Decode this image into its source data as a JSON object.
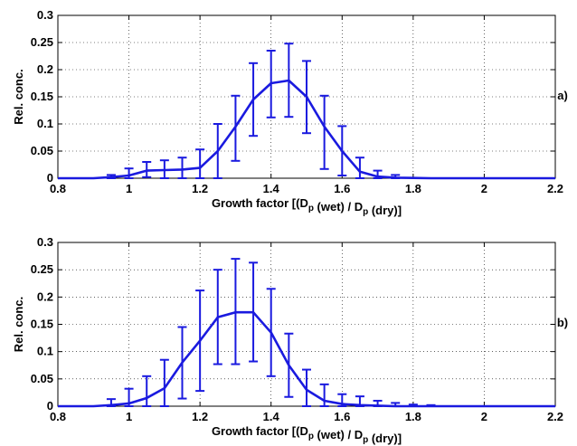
{
  "chart_data": [
    {
      "type": "line",
      "panel_label": "a)",
      "xlabel": "Growth factor [(D_p (wet) / D_p (dry)]",
      "ylabel": "Rel. conc.",
      "xlim": [
        0.8,
        2.2
      ],
      "ylim": [
        0,
        0.3
      ],
      "xticks": [
        "0.8",
        "1",
        "1.2",
        "1.4",
        "1.6",
        "1.8",
        "2",
        "2.2"
      ],
      "yticks": [
        "0",
        "0.05",
        "0.1",
        "0.15",
        "0.2",
        "0.25",
        "0.3"
      ],
      "grid": true,
      "color": "#1a1adf",
      "x": [
        0.8,
        0.85,
        0.9,
        0.95,
        1.0,
        1.05,
        1.1,
        1.15,
        1.2,
        1.25,
        1.3,
        1.35,
        1.4,
        1.45,
        1.5,
        1.55,
        1.6,
        1.65,
        1.7,
        1.75,
        1.8,
        1.85,
        1.9,
        1.95,
        2.0,
        2.05,
        2.1,
        2.15,
        2.2
      ],
      "y": [
        0,
        0,
        0,
        0.002,
        0.005,
        0.014,
        0.015,
        0.016,
        0.019,
        0.05,
        0.095,
        0.145,
        0.175,
        0.18,
        0.15,
        0.095,
        0.05,
        0.012,
        0.003,
        0.001,
        0.0005,
        0,
        0,
        0,
        0,
        0,
        0,
        0,
        0
      ],
      "error_low": [
        0,
        0,
        0,
        0,
        0,
        0.002,
        0,
        0,
        0,
        0,
        0.032,
        0.078,
        0.112,
        0.113,
        0.083,
        0.017,
        0.005,
        0,
        0,
        0,
        0,
        0,
        0,
        0,
        0,
        0,
        0,
        0,
        0
      ],
      "error_high": [
        0,
        0,
        0,
        0.006,
        0.018,
        0.03,
        0.033,
        0.038,
        0.053,
        0.1,
        0.152,
        0.212,
        0.235,
        0.248,
        0.216,
        0.152,
        0.096,
        0.038,
        0.014,
        0.006,
        0,
        0,
        0,
        0,
        0,
        0,
        0,
        0,
        0
      ]
    },
    {
      "type": "line",
      "panel_label": "b)",
      "xlabel": "Growth factor [(D_p (wet) / D_p (dry)]",
      "ylabel": "Rel. conc.",
      "xlim": [
        0.8,
        2.2
      ],
      "ylim": [
        0,
        0.3
      ],
      "xticks": [
        "0.8",
        "1",
        "1.2",
        "1.4",
        "1.6",
        "1.8",
        "2",
        "2.2"
      ],
      "yticks": [
        "0",
        "0.05",
        "0.1",
        "0.15",
        "0.2",
        "0.25",
        "0.3"
      ],
      "grid": true,
      "color": "#1a1adf",
      "x": [
        0.8,
        0.85,
        0.9,
        0.95,
        1.0,
        1.05,
        1.1,
        1.15,
        1.2,
        1.25,
        1.3,
        1.35,
        1.4,
        1.45,
        1.5,
        1.55,
        1.6,
        1.65,
        1.7,
        1.75,
        1.8,
        1.85,
        1.9,
        1.95,
        2.0,
        2.05,
        2.1,
        2.15,
        2.2
      ],
      "y": [
        0,
        0,
        0,
        0.002,
        0.005,
        0.015,
        0.033,
        0.08,
        0.12,
        0.163,
        0.172,
        0.172,
        0.135,
        0.075,
        0.03,
        0.01,
        0.004,
        0.002,
        0.001,
        0,
        0,
        0,
        0,
        0,
        0,
        0,
        0,
        0,
        0
      ],
      "error_low": [
        0,
        0,
        0,
        0,
        0,
        0,
        0,
        0.014,
        0.028,
        0.077,
        0.077,
        0.082,
        0.055,
        0.017,
        0,
        0,
        0,
        0,
        0,
        0,
        0,
        0,
        0,
        0,
        0,
        0,
        0,
        0,
        0
      ],
      "error_high": [
        0,
        0,
        0,
        0.013,
        0.032,
        0.055,
        0.085,
        0.145,
        0.212,
        0.25,
        0.27,
        0.263,
        0.215,
        0.133,
        0.067,
        0.04,
        0.022,
        0.018,
        0.01,
        0.006,
        0.003,
        0.002,
        0,
        0,
        0,
        0,
        0,
        0,
        0
      ]
    }
  ]
}
